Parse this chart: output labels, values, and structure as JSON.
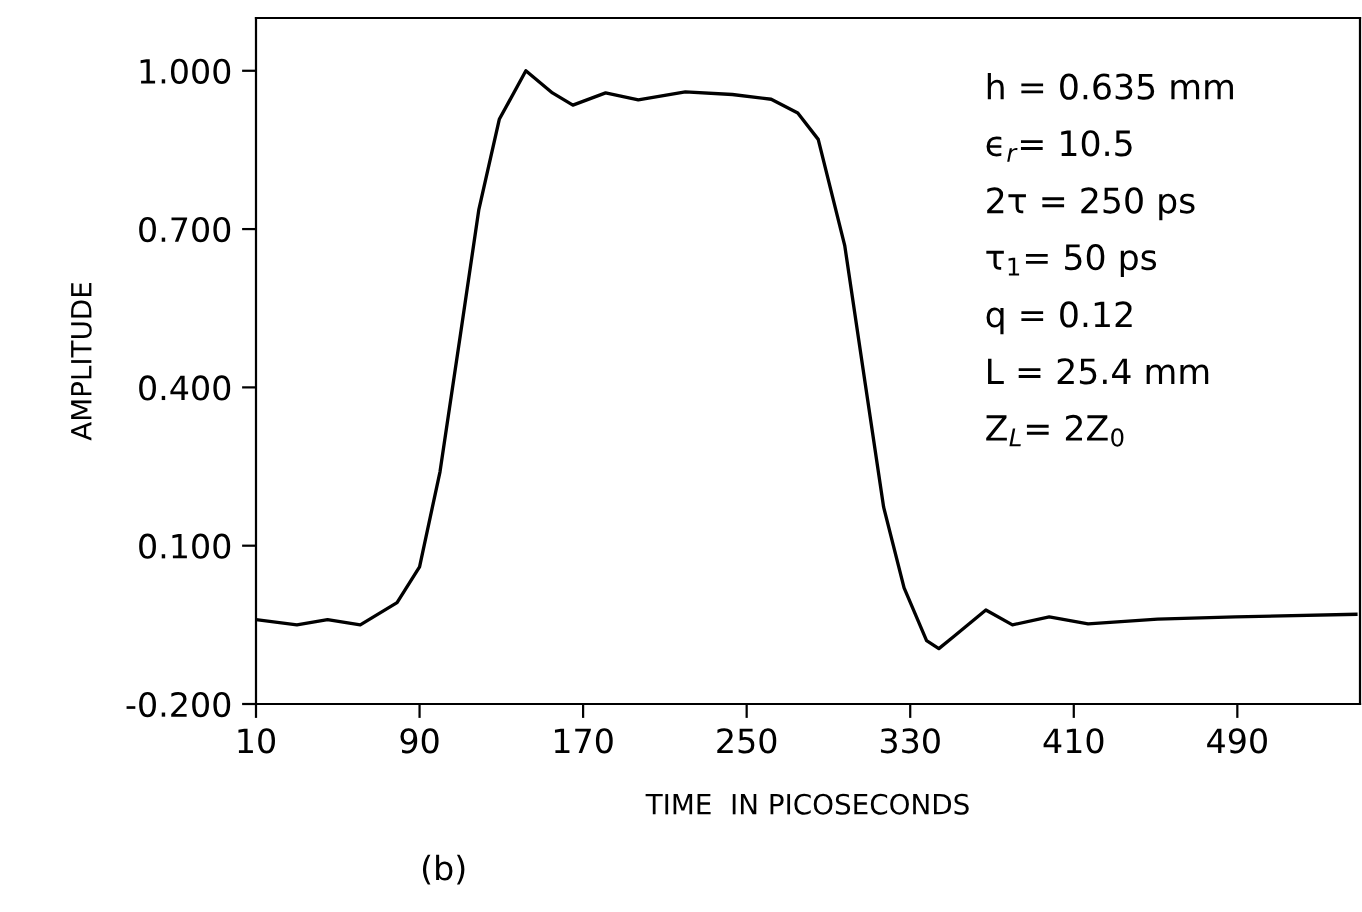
{
  "chart_data": {
    "type": "line",
    "xlabel": "TIME  IN PICOSECONDS",
    "ylabel": "AMPLITUDE",
    "annotations": [
      "h = 0.635 mm",
      "ϵ$_{r}$= 10.5",
      "2τ = 250 ps",
      "τ$_{1}$= 50 ps",
      "q = 0.12",
      "L = 25.4 mm",
      "Z$_{L}$= 2Z$_{0}$",
      "(b)"
    ],
    "series": [
      {
        "color": "#000000",
        "x": [
          10,
          30,
          45,
          61,
          79,
          90,
          100,
          110,
          119,
          129,
          142,
          155,
          165,
          181,
          197,
          220,
          243,
          262,
          275,
          285,
          298,
          308,
          317,
          327,
          338,
          344,
          351,
          367,
          380,
          398,
          417,
          451,
          489,
          548
        ],
        "values": [
          -0.04,
          -0.05,
          -0.04,
          -0.05,
          -0.008,
          0.06,
          0.24,
          0.5,
          0.737,
          0.908,
          1.0,
          0.958,
          0.935,
          0.958,
          0.945,
          0.96,
          0.955,
          0.946,
          0.92,
          0.87,
          0.668,
          0.407,
          0.173,
          0.02,
          -0.08,
          -0.095,
          -0.073,
          -0.022,
          -0.05,
          -0.035,
          -0.048,
          -0.039,
          -0.035,
          -0.03
        ]
      }
    ],
    "xlim": [
      10,
      550
    ],
    "ylim": [
      -0.2,
      1.1
    ],
    "xticks": [
      10,
      90,
      170,
      250,
      330,
      410,
      490
    ],
    "yticks": [
      {
        "value": -0.2,
        "label": "-0.200"
      },
      {
        "value": 0.1,
        "label": "0.100"
      },
      {
        "value": 0.4,
        "label": "0.400"
      },
      {
        "value": 0.7,
        "label": "0.700"
      },
      {
        "value": 1.0,
        "label": "1.000"
      }
    ],
    "grid": false,
    "legend": false,
    "marker": "none",
    "line_style": "solid"
  }
}
